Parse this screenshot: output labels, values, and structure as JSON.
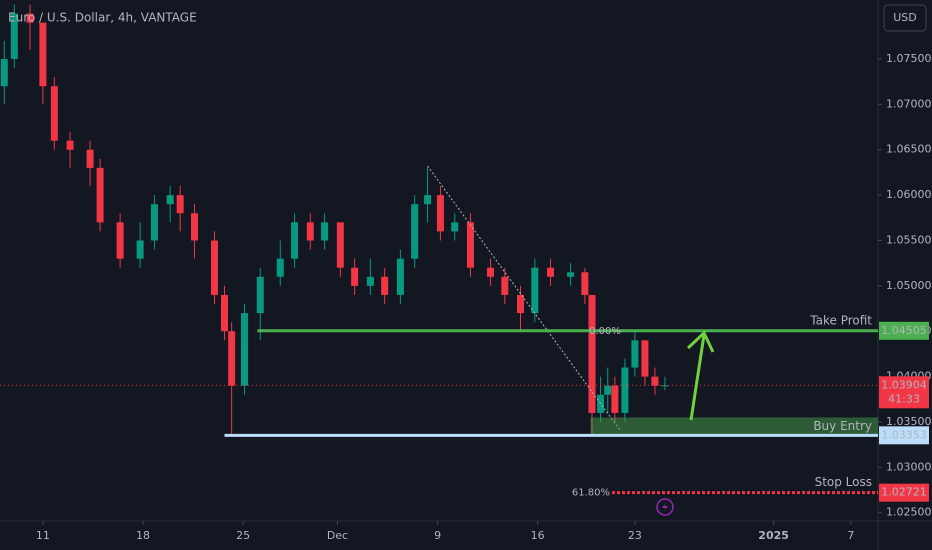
{
  "chart_data": {
    "type": "candlestick",
    "title": "Euro / U.S. Dollar, 4h, VANTAGE",
    "currency": "USD",
    "xlim": [
      -3.0,
      58.4
    ],
    "ylim": [
      1.0242,
      1.0815
    ],
    "xticks": [
      {
        "value": 0,
        "label": "11"
      },
      {
        "value": 7,
        "label": "18"
      },
      {
        "value": 14,
        "label": "25"
      },
      {
        "value": 20.6,
        "label": "Dec"
      },
      {
        "value": 27.6,
        "label": "9"
      },
      {
        "value": 34.6,
        "label": "16"
      },
      {
        "value": 41.4,
        "label": "23"
      },
      {
        "value": 51.1,
        "label": "2025"
      },
      {
        "value": 56.5,
        "label": "7"
      }
    ],
    "yticks": [
      {
        "value": 1.075,
        "label": "1.07500"
      },
      {
        "value": 1.07,
        "label": "1.07000"
      },
      {
        "value": 1.065,
        "label": "1.06500"
      },
      {
        "value": 1.06,
        "label": "1.06000"
      },
      {
        "value": 1.055,
        "label": "1.05500"
      },
      {
        "value": 1.05,
        "label": "1.05000"
      },
      {
        "value": 1.045,
        "label": "1.04500"
      },
      {
        "value": 1.04,
        "label": "1.04000"
      },
      {
        "value": 1.035,
        "label": "1.03500"
      },
      {
        "value": 1.03,
        "label": "1.03000"
      },
      {
        "value": 1.025,
        "label": "1.02500"
      }
    ],
    "up_color": "#089981",
    "down_color": "#f23645",
    "x": [
      -2.7,
      -2.0,
      -0.9,
      0,
      0.8,
      1.9,
      3.3,
      4.0,
      5.4,
      6.8,
      7.8,
      8.9,
      9.6,
      10.6,
      12.0,
      12.7,
      13.2,
      14.1,
      15.2,
      16.6,
      17.6,
      18.7,
      19.7,
      20.8,
      21.8,
      22.9,
      23.9,
      25.0,
      26.0,
      26.9,
      27.8,
      28.8,
      29.9,
      31.3,
      32.3,
      33.4,
      34.4,
      35.5,
      36.9,
      37.9,
      38.4,
      39.0,
      39.5,
      40.0,
      40.7,
      41.4,
      42.1,
      42.8,
      43.5
    ],
    "open": [
      1.072,
      1.075,
      1.08,
      1.079,
      1.072,
      1.066,
      1.065,
      1.063,
      1.057,
      1.053,
      1.055,
      1.059,
      1.06,
      1.058,
      1.055,
      1.049,
      1.045,
      1.039,
      1.047,
      1.051,
      1.053,
      1.057,
      1.055,
      1.057,
      1.052,
      1.05,
      1.051,
      1.049,
      1.053,
      1.059,
      1.06,
      1.056,
      1.057,
      1.052,
      1.051,
      1.049,
      1.047,
      1.052,
      1.051,
      1.0515,
      1.049,
      1.036,
      1.038,
      1.039,
      1.036,
      1.041,
      1.044,
      1.04,
      1.039
    ],
    "high": [
      1.077,
      1.081,
      1.081,
      1.079,
      1.073,
      1.067,
      1.066,
      1.064,
      1.058,
      1.057,
      1.06,
      1.061,
      1.061,
      1.059,
      1.056,
      1.05,
      1.046,
      1.048,
      1.052,
      1.055,
      1.058,
      1.058,
      1.058,
      1.057,
      1.053,
      1.053,
      1.052,
      1.054,
      1.06,
      1.063,
      1.061,
      1.058,
      1.058,
      1.053,
      1.052,
      1.05,
      1.053,
      1.053,
      1.0525,
      1.052,
      1.049,
      1.04,
      1.041,
      1.04,
      1.042,
      1.045,
      1.044,
      1.041,
      1.04
    ],
    "low": [
      1.07,
      1.074,
      1.076,
      1.07,
      1.065,
      1.063,
      1.061,
      1.056,
      1.052,
      1.052,
      1.054,
      1.057,
      1.056,
      1.053,
      1.048,
      1.044,
      1.0335,
      1.038,
      1.044,
      1.05,
      1.052,
      1.054,
      1.054,
      1.051,
      1.049,
      1.049,
      1.048,
      1.048,
      1.052,
      1.057,
      1.055,
      1.055,
      1.051,
      1.05,
      1.048,
      1.045,
      1.046,
      1.05,
      1.05,
      1.048,
      1.0335,
      1.035,
      1.036,
      1.035,
      1.035,
      1.04,
      1.039,
      1.038,
      1.0385
    ],
    "close": [
      1.075,
      1.08,
      1.079,
      1.072,
      1.066,
      1.065,
      1.063,
      1.057,
      1.053,
      1.055,
      1.059,
      1.06,
      1.058,
      1.055,
      1.049,
      1.045,
      1.039,
      1.047,
      1.051,
      1.053,
      1.057,
      1.055,
      1.057,
      1.052,
      1.05,
      1.051,
      1.049,
      1.053,
      1.059,
      1.06,
      1.056,
      1.057,
      1.052,
      1.051,
      1.049,
      1.047,
      1.052,
      1.051,
      1.0515,
      1.049,
      1.036,
      1.038,
      1.039,
      1.036,
      1.041,
      1.044,
      1.04,
      1.039,
      1.03904
    ],
    "levels": [
      {
        "name": "Take Profit",
        "value": 1.04505,
        "color": "#4caf50",
        "x_start": 15.0
      },
      {
        "name": "Buy Entry",
        "value": 1.03353,
        "color": "#bbdefb",
        "x_start": 12.7,
        "zone_top": 1.0355,
        "zone_start": 38.3
      },
      {
        "name": "Stop Loss",
        "value": 1.02721,
        "color": "#f23645",
        "x_start": 39.8,
        "dotted": true
      }
    ],
    "last_price": {
      "value": 1.03904,
      "countdown": "41:33",
      "color": "#f23645"
    },
    "fib": {
      "x": [
        26.9,
        40.4
      ],
      "y": [
        1.0632,
        1.034
      ],
      "labels": [
        "0.00%",
        "61.80%"
      ]
    }
  }
}
